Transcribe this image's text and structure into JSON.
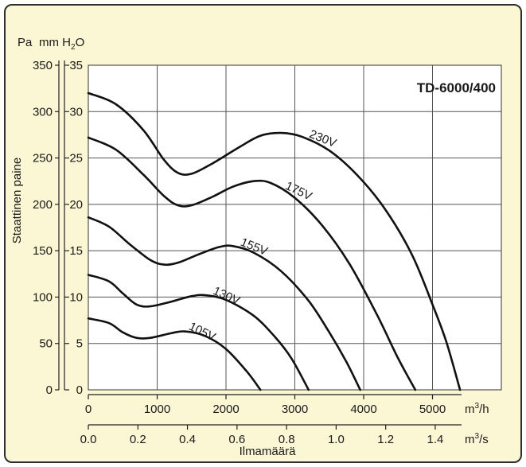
{
  "chart_data": {
    "type": "line",
    "model_label": "TD-6000/400",
    "y_pa_label": "Pa",
    "y_mm_label": "mm H",
    "y_mm_sub": "2",
    "y_mm_tail": "O",
    "ylabel": "Staattinen paine",
    "xlabel": "Ilmamäärä",
    "x_unit_h": "m",
    "x_unit_h_sup": "3",
    "x_unit_h_tail": "/h",
    "x_unit_s": "m",
    "x_unit_s_sup": "3",
    "x_unit_s_tail": "/s",
    "ticks_pa": [
      "0",
      "50",
      "100",
      "150",
      "200",
      "250",
      "300",
      "350"
    ],
    "ticks_mm": [
      "0",
      "5",
      "10",
      "15",
      "20",
      "25",
      "30",
      "35"
    ],
    "ticks_m3h": [
      "0",
      "1000",
      "2000",
      "3000",
      "4000",
      "5000"
    ],
    "ticks_m3s": [
      "0.0",
      "0.2",
      "0.4",
      "0.6",
      "0.8",
      "1.0",
      "1.2",
      "1.4"
    ],
    "xlim_m3h": [
      0,
      6000
    ],
    "ylim_pa": [
      0,
      350
    ],
    "grid": true,
    "series": [
      {
        "name": "230V",
        "x": [
          0,
          400,
          800,
          1100,
          1300,
          1500,
          1800,
          2200,
          2500,
          2800,
          3100,
          3500,
          3900,
          4300,
          4700,
          5000,
          5200,
          5400
        ],
        "y": [
          320,
          308,
          280,
          248,
          234,
          233,
          244,
          262,
          274,
          277,
          273,
          258,
          232,
          196,
          146,
          92,
          52,
          0
        ]
      },
      {
        "name": "175V",
        "x": [
          0,
          400,
          800,
          1100,
          1300,
          1500,
          1800,
          2100,
          2400,
          2650,
          3000,
          3400,
          3800,
          4200,
          4500,
          4750
        ],
        "y": [
          272,
          259,
          232,
          209,
          199,
          199,
          208,
          219,
          225,
          223,
          207,
          177,
          135,
          80,
          34,
          0
        ]
      },
      {
        "name": "155V",
        "x": [
          0,
          300,
          600,
          900,
          1100,
          1300,
          1600,
          1900,
          2100,
          2400,
          2800,
          3200,
          3500,
          3750,
          3950
        ],
        "y": [
          186,
          176,
          157,
          140,
          135,
          137,
          146,
          154,
          155,
          148,
          128,
          96,
          62,
          30,
          0
        ]
      },
      {
        "name": "130V",
        "x": [
          0,
          300,
          500,
          700,
          900,
          1200,
          1500,
          1700,
          2000,
          2400,
          2700,
          2950,
          3200
        ],
        "y": [
          124,
          117,
          104,
          92,
          90,
          95,
          101,
          102,
          97,
          80,
          58,
          34,
          0
        ]
      },
      {
        "name": "105V",
        "x": [
          0,
          300,
          500,
          700,
          900,
          1200,
          1400,
          1700,
          2000,
          2300,
          2500
        ],
        "y": [
          77,
          72,
          62,
          56,
          56,
          61,
          63,
          58,
          44,
          20,
          0
        ]
      }
    ]
  }
}
